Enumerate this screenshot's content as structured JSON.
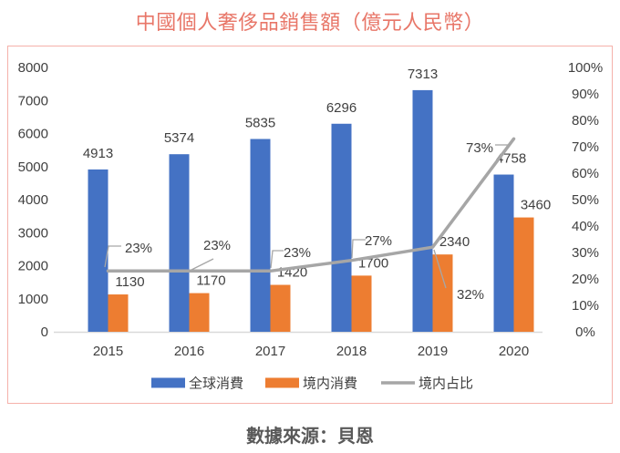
{
  "title": "中國個人奢侈品銷售額（億元人民幣）",
  "source": "數據來源：貝恩",
  "chart_data": {
    "type": "bar",
    "subtype": "bar-line-combo",
    "categories": [
      "2015",
      "2016",
      "2017",
      "2018",
      "2019",
      "2020"
    ],
    "series": [
      {
        "name": "全球消費",
        "kind": "bar",
        "axis": "left",
        "color": "#4472c4",
        "values": [
          4913,
          5374,
          5835,
          6296,
          7313,
          4758
        ],
        "value_labels": [
          "4913",
          "5374",
          "5835",
          "6296",
          "7313",
          "4758"
        ]
      },
      {
        "name": "境内消費",
        "kind": "bar",
        "axis": "left",
        "color": "#ed7d31",
        "values": [
          1130,
          1170,
          1420,
          1700,
          2340,
          3460
        ],
        "value_labels": [
          "1130",
          "1170",
          "1420",
          "1700",
          "2340",
          "3460"
        ]
      },
      {
        "name": "境内占比",
        "kind": "line",
        "axis": "right",
        "color": "#a6a6a6",
        "values": [
          23,
          23,
          23,
          27,
          32,
          73
        ],
        "value_labels": [
          "23%",
          "23%",
          "23%",
          "27%",
          "32%",
          "73%"
        ]
      }
    ],
    "left_axis": {
      "min": 0,
      "max": 8000,
      "step": 1000,
      "ticks": [
        "8000",
        "7000",
        "6000",
        "5000",
        "4000",
        "3000",
        "2000",
        "1000",
        "0"
      ]
    },
    "right_axis": {
      "min": 0,
      "max": 100,
      "step": 10,
      "ticks": [
        "100%",
        "90%",
        "80%",
        "70%",
        "60%",
        "50%",
        "40%",
        "30%",
        "20%",
        "10%",
        "0%"
      ]
    },
    "grid": false,
    "legend": {
      "position": "bottom",
      "entries": [
        {
          "label": "全球消費",
          "kind": "bar",
          "color": "#4472c4"
        },
        {
          "label": "境内消費",
          "kind": "bar",
          "color": "#ed7d31"
        },
        {
          "label": "境内占比",
          "kind": "line",
          "color": "#a6a6a6"
        }
      ]
    },
    "layout": {
      "callouts": [
        {
          "label_x": 143,
          "label_y": 221,
          "leader": [
            [
              124,
              219
            ],
            [
              110,
              219
            ],
            [
              106,
              242
            ]
          ]
        },
        {
          "label_x": 229,
          "label_y": 218,
          "leader": [
            [
              225,
              233
            ],
            [
              201,
              245
            ]
          ]
        },
        {
          "label_x": 317,
          "label_y": 226,
          "leader": [
            [
              302,
              224
            ],
            [
              290,
              224
            ],
            [
              288,
              243
            ]
          ]
        },
        {
          "label_x": 406,
          "label_y": 213,
          "leader": [
            [
              392,
              212
            ],
            [
              378,
              212
            ],
            [
              377,
              232
            ]
          ]
        },
        {
          "label_x": 507,
          "label_y": 272,
          "leader": [
            [
              480,
              265
            ],
            [
              467,
              223
            ]
          ]
        },
        {
          "label_x": 517,
          "label_y": 111,
          "leader": [
            [
              534,
              108
            ],
            [
              548,
              108
            ]
          ]
        }
      ],
      "bar1_label_dx": [
        0,
        0,
        0,
        0,
        0,
        8
      ],
      "bar2_label_dx": 13
    },
    "colors": {
      "title": "#e87668",
      "frame_border": "#f5b1aa",
      "axis_line": "#d9d9d9",
      "text": "#404040"
    }
  }
}
